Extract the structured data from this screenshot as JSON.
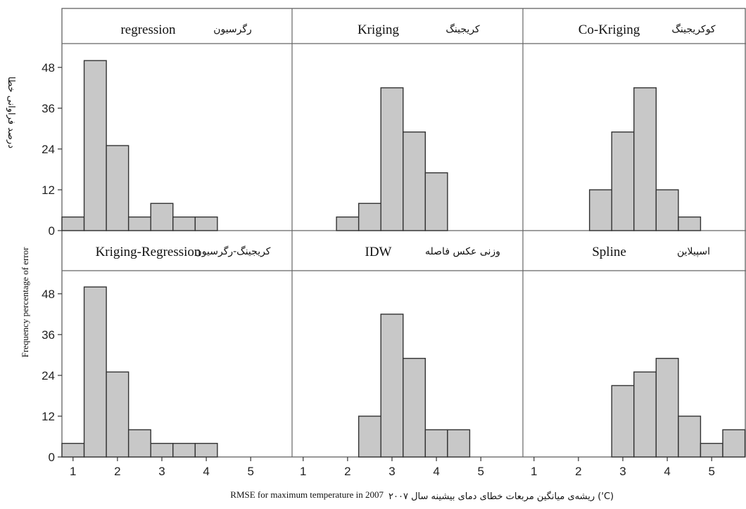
{
  "chart_data": {
    "type": "bar",
    "layout": "2x3 histogram panel grid",
    "xlabel": "RMSE for maximum temperature in 2007",
    "xlabel_fa": "ریشه‌ی میانگین مربعات خطای دمای بیشینه سال ۲۰۰۷ ('C)",
    "ylabel": "Frequency percentage of error",
    "ylabel_fa": "درصد فراوانی خطا",
    "x_ticks": [
      "1",
      "2",
      "3",
      "4",
      "5"
    ],
    "y_ticks": [
      "0",
      "12",
      "24",
      "36",
      "48"
    ],
    "xlim": [
      0.75,
      5.9
    ],
    "ylim": [
      0,
      55
    ],
    "bin_width": 0.5,
    "panels": [
      {
        "title": "regression",
        "title_fa": "رگرسیون",
        "bin_starts": [
          0.75,
          1.25,
          1.75,
          2.25,
          2.75,
          3.25,
          3.75
        ],
        "values": [
          4,
          50,
          25,
          4,
          8,
          4,
          4
        ]
      },
      {
        "title": "Kriging",
        "title_fa": "کریجینگ",
        "bin_starts": [
          1.75,
          2.25,
          2.75,
          3.25,
          3.75
        ],
        "values": [
          4,
          8,
          42,
          29,
          17
        ]
      },
      {
        "title": "Co-Kriging",
        "title_fa": "کوکریجینگ",
        "bin_starts": [
          2.25,
          2.75,
          3.25,
          3.75,
          4.25
        ],
        "values": [
          12,
          29,
          42,
          12,
          4
        ]
      },
      {
        "title": "Kriging-Regression",
        "title_fa": "کریجینگ-رگرسیون",
        "bin_starts": [
          0.75,
          1.25,
          1.75,
          2.25,
          2.75,
          3.25,
          3.75
        ],
        "values": [
          4,
          50,
          25,
          8,
          4,
          4,
          4
        ]
      },
      {
        "title": "IDW",
        "title_fa": "وزنی عکس فاصله",
        "bin_starts": [
          2.25,
          2.75,
          3.25,
          3.75,
          4.25
        ],
        "values": [
          12,
          42,
          29,
          8,
          8
        ]
      },
      {
        "title": "Spline",
        "title_fa": "اسپیلاین",
        "bin_starts": [
          2.75,
          3.25,
          3.75,
          4.25,
          4.75,
          5.25
        ],
        "values": [
          21,
          25,
          29,
          12,
          4,
          8
        ]
      }
    ]
  }
}
